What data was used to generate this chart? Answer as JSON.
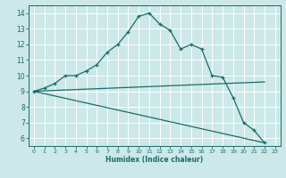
{
  "title": "",
  "xlabel": "Humidex (Indice chaleur)",
  "bg_color": "#cce8e8",
  "grid_color": "#ffffff",
  "line_color": "#1a6b6b",
  "xlim": [
    -0.5,
    23.5
  ],
  "ylim": [
    5.5,
    14.5
  ],
  "xticks": [
    0,
    1,
    2,
    3,
    4,
    5,
    6,
    7,
    8,
    9,
    10,
    11,
    12,
    13,
    14,
    15,
    16,
    17,
    18,
    19,
    20,
    21,
    22,
    23
  ],
  "yticks": [
    6,
    7,
    8,
    9,
    10,
    11,
    12,
    13,
    14
  ],
  "line1_x": [
    0,
    1,
    2,
    3,
    4,
    5,
    6,
    7,
    8,
    9,
    10,
    11,
    12,
    13,
    14,
    15,
    16,
    17,
    18,
    19,
    20,
    21,
    22
  ],
  "line1_y": [
    9.0,
    9.2,
    9.5,
    10.0,
    10.0,
    10.3,
    10.7,
    11.5,
    12.0,
    12.8,
    13.8,
    14.0,
    13.3,
    12.9,
    11.7,
    12.0,
    11.7,
    10.0,
    9.9,
    8.6,
    7.0,
    6.5,
    5.7
  ],
  "line2_x": [
    0,
    22
  ],
  "line2_y": [
    9.0,
    9.6
  ],
  "line3_x": [
    0,
    22
  ],
  "line3_y": [
    9.0,
    5.7
  ],
  "xlabel_fontsize": 5.5,
  "tick_fontsize_x": 4.5,
  "tick_fontsize_y": 5.5
}
